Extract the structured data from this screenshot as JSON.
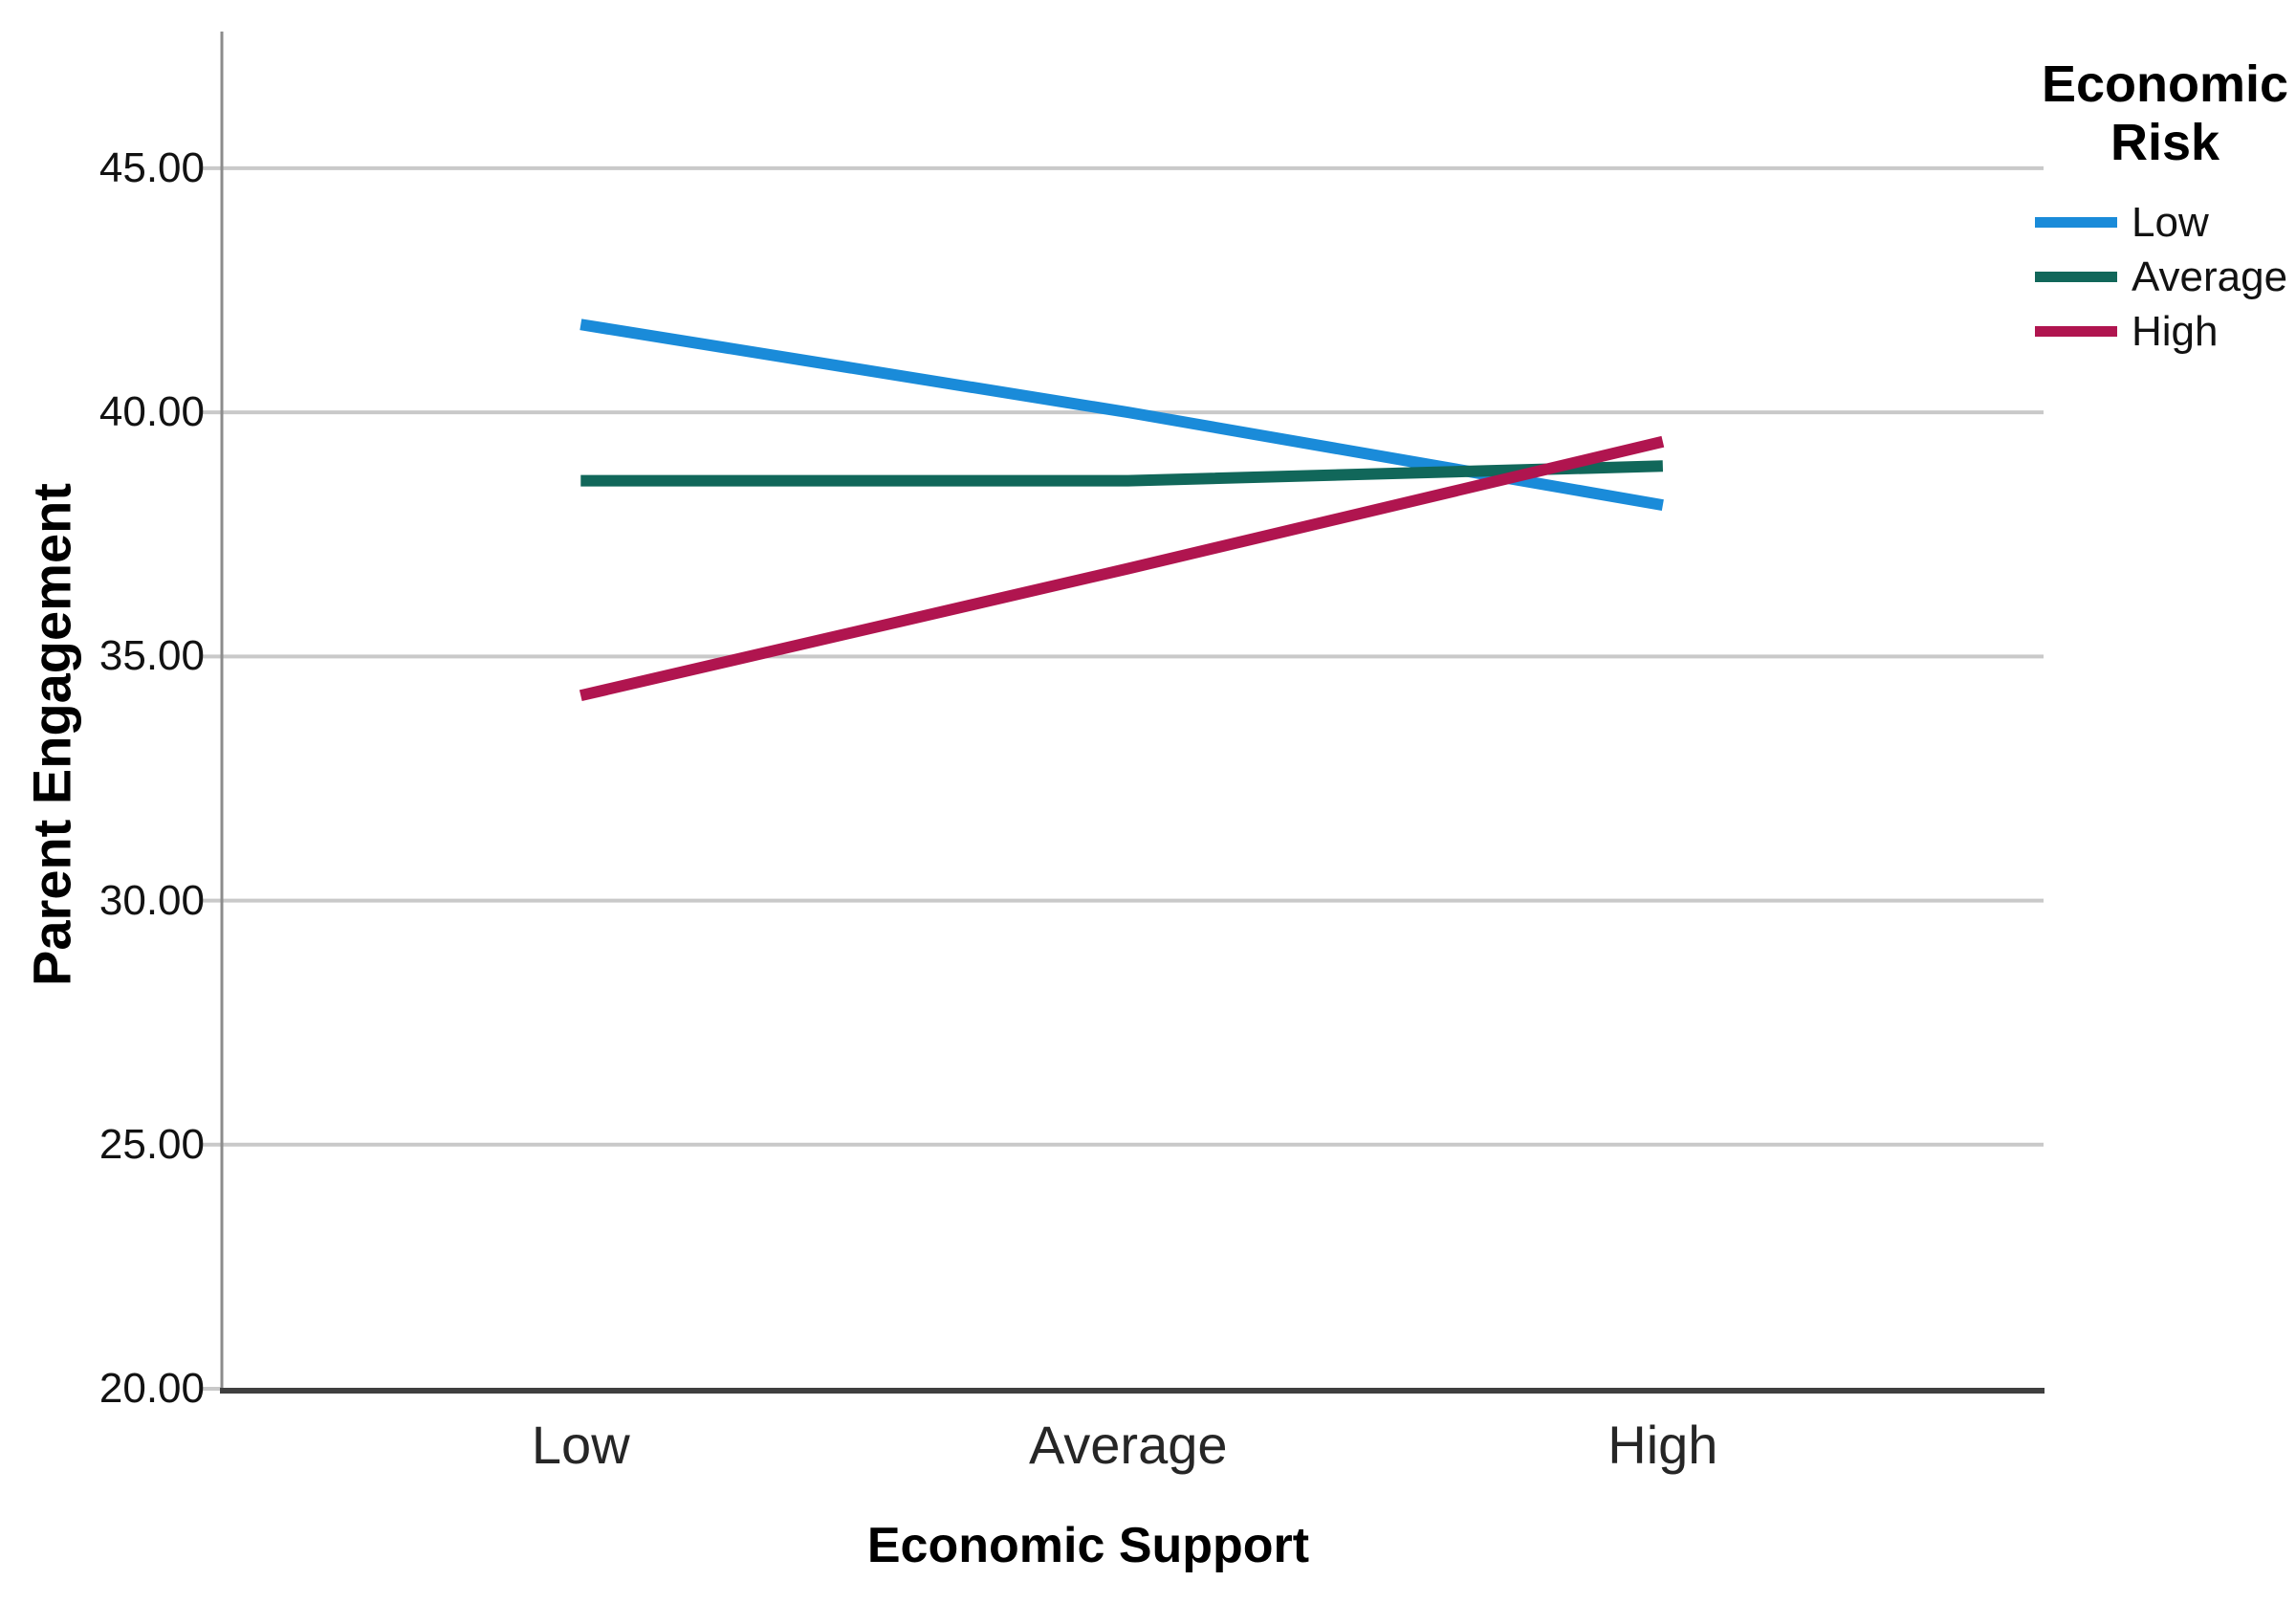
{
  "chart_data": {
    "type": "line",
    "title": "",
    "xlabel": "Economic Support",
    "ylabel": "Parent Engagement",
    "categories": [
      "Low",
      "Average",
      "High"
    ],
    "series": [
      {
        "name": "Low",
        "color": "#1A8BD9",
        "values": [
          41.8,
          40.0,
          38.1
        ]
      },
      {
        "name": "Average",
        "color": "#11675A",
        "values": [
          38.6,
          38.6,
          38.9
        ]
      },
      {
        "name": "High",
        "color": "#B0154F",
        "values": [
          34.2,
          36.8,
          39.4
        ]
      }
    ],
    "legend_title": "Economic Risk",
    "legend_position": "top-right",
    "yticks": [
      20,
      25,
      30,
      35,
      40,
      45
    ],
    "ytick_labels": [
      "20.00",
      "25.00",
      "30.00",
      "35.00",
      "40.00",
      "45.00"
    ],
    "ylim": [
      20,
      47.8
    ],
    "grid": "horizontal",
    "colors": {
      "gridline": "#C9C9C9",
      "y_axis": "#8C8C8C",
      "x_axis": "#3F3F3F",
      "background": "#FFFFFF"
    }
  }
}
